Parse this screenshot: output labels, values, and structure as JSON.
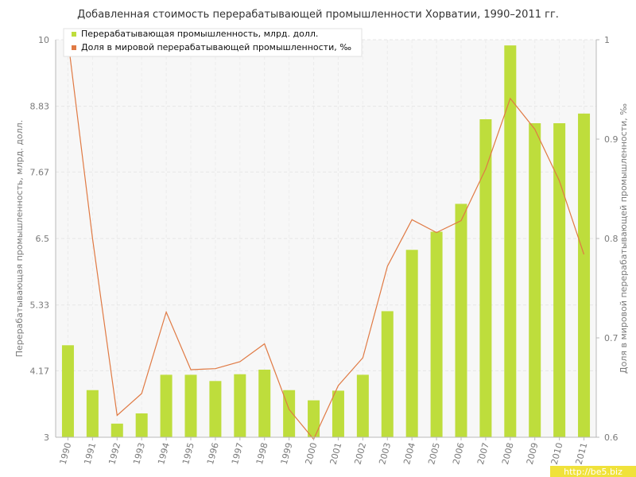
{
  "chart_data": {
    "type": "bar",
    "title": "Добавленная стоимость перерабатывающей промышленности Хорватии, 1990–2011 гг.",
    "categories": [
      "1990",
      "1991",
      "1992",
      "1993",
      "1994",
      "1995",
      "1996",
      "1997",
      "1998",
      "1999",
      "2000",
      "2001",
      "2002",
      "2003",
      "2004",
      "2005",
      "2006",
      "2007",
      "2008",
      "2009",
      "2010",
      "2011"
    ],
    "series": [
      {
        "name": "Перерабатывающая промышленность, млрд. долл.",
        "type": "bar",
        "axis": "left",
        "color": "#bedd3c",
        "values": [
          4.62,
          3.83,
          3.24,
          3.42,
          4.1,
          4.1,
          3.99,
          4.11,
          4.19,
          3.83,
          3.65,
          3.82,
          4.1,
          5.22,
          6.3,
          6.62,
          7.11,
          8.6,
          9.9,
          8.53,
          8.53,
          8.7
        ]
      },
      {
        "name": "Доля в мировой перерабатывающей промышленности, ‰",
        "type": "line",
        "axis": "right",
        "color": "#e07a44",
        "values": [
          1.0,
          0.8,
          0.622,
          0.644,
          0.726,
          0.668,
          0.669,
          0.676,
          0.694,
          0.628,
          0.598,
          0.652,
          0.68,
          0.772,
          0.819,
          0.806,
          0.818,
          0.87,
          0.941,
          0.91,
          0.858,
          0.784
        ]
      }
    ],
    "y_left": {
      "label": "Перерабатывающая промышленность, млрд. долл.",
      "ticks": [
        "3",
        "4.17",
        "5.33",
        "6.5",
        "7.67",
        "8.83",
        "10"
      ],
      "ylim": [
        3,
        10
      ]
    },
    "y_right": {
      "label": "Доля в мировой перерабатывающей промышленности, ‰",
      "ticks": [
        "0.6",
        "0.7",
        "0.8",
        "0.9",
        "1"
      ],
      "ylim": [
        0.6,
        1.0
      ]
    },
    "grid": true,
    "legend_position": "top-left"
  },
  "watermark": "http://be5.biz"
}
